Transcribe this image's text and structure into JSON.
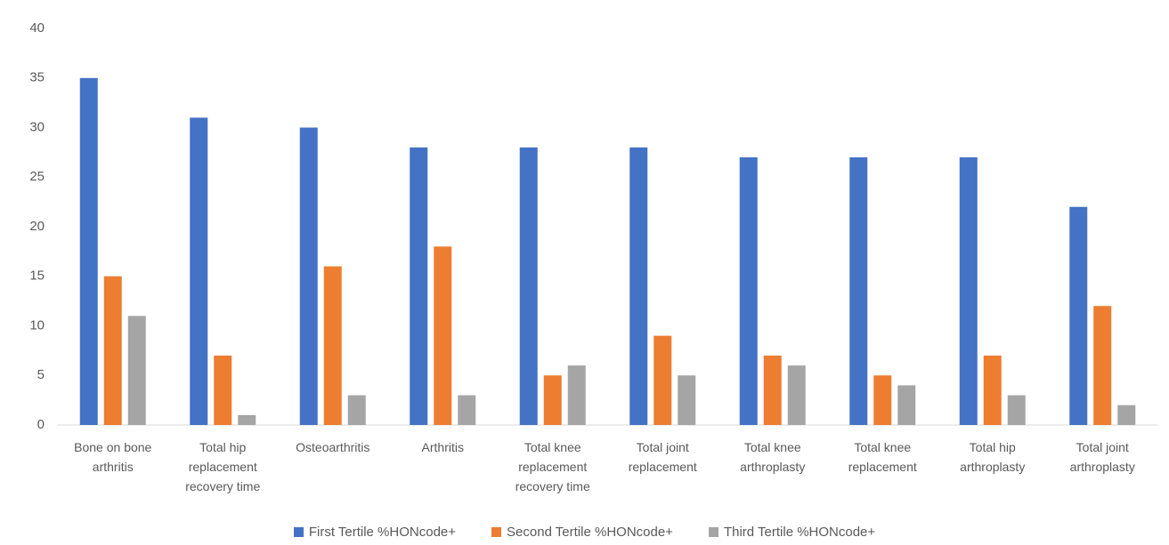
{
  "chart_data": {
    "type": "bar",
    "categories": [
      "Bone on bone arthritis",
      "Total hip replacement recovery time",
      "Osteoarthritis",
      "Arthritis",
      "Total knee replacement recovery time",
      "Total joint replacement",
      "Total knee arthroplasty",
      "Total knee replacement",
      "Total hip arthroplasty",
      "Total joint arthroplasty"
    ],
    "series": [
      {
        "name": "First Tertile %HONcode+",
        "color": "#4472c4",
        "values": [
          35,
          31,
          30,
          28,
          28,
          28,
          27,
          27,
          27,
          22
        ]
      },
      {
        "name": "Second Tertile %HONcode+",
        "color": "#ed7d31",
        "values": [
          15,
          7,
          16,
          18,
          5,
          9,
          7,
          5,
          7,
          12
        ]
      },
      {
        "name": "Third Tertile %HONcode+",
        "color": "#a5a5a5",
        "values": [
          11,
          1,
          3,
          3,
          6,
          5,
          6,
          4,
          3,
          2
        ]
      }
    ],
    "ylim": [
      0,
      40
    ],
    "yticks": [
      0,
      5,
      10,
      15,
      20,
      25,
      30,
      35,
      40
    ],
    "grid": false,
    "legend": "bottom"
  }
}
